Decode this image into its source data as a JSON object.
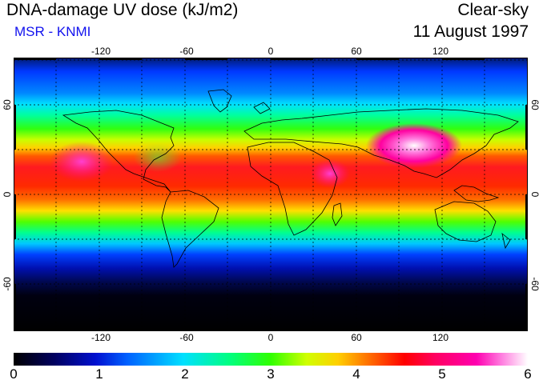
{
  "header": {
    "title": "DNA-damage UV dose (kJ/m2)",
    "subtitle": "MSR - KNMI",
    "sky_condition": "Clear-sky",
    "date": "11 August 1997"
  },
  "map": {
    "lon_ticks": [
      "-120",
      "-60",
      "0",
      "60",
      "120"
    ],
    "lat_ticks_left": [
      "60",
      "0",
      "-60"
    ],
    "lat_ticks_right": [
      "60",
      "0",
      "-60"
    ],
    "projection": "equirectangular",
    "grid": "dashed 30-degree graticule"
  },
  "colorbar": {
    "min": 0,
    "max": 6,
    "labels": [
      "0",
      "1",
      "2",
      "3",
      "4",
      "5",
      "6"
    ],
    "colors": [
      "#000000",
      "#0010d0",
      "#00e0ff",
      "#30ff00",
      "#ffd000",
      "#ff0000",
      "#ff00b0",
      "#ffffff"
    ]
  }
}
